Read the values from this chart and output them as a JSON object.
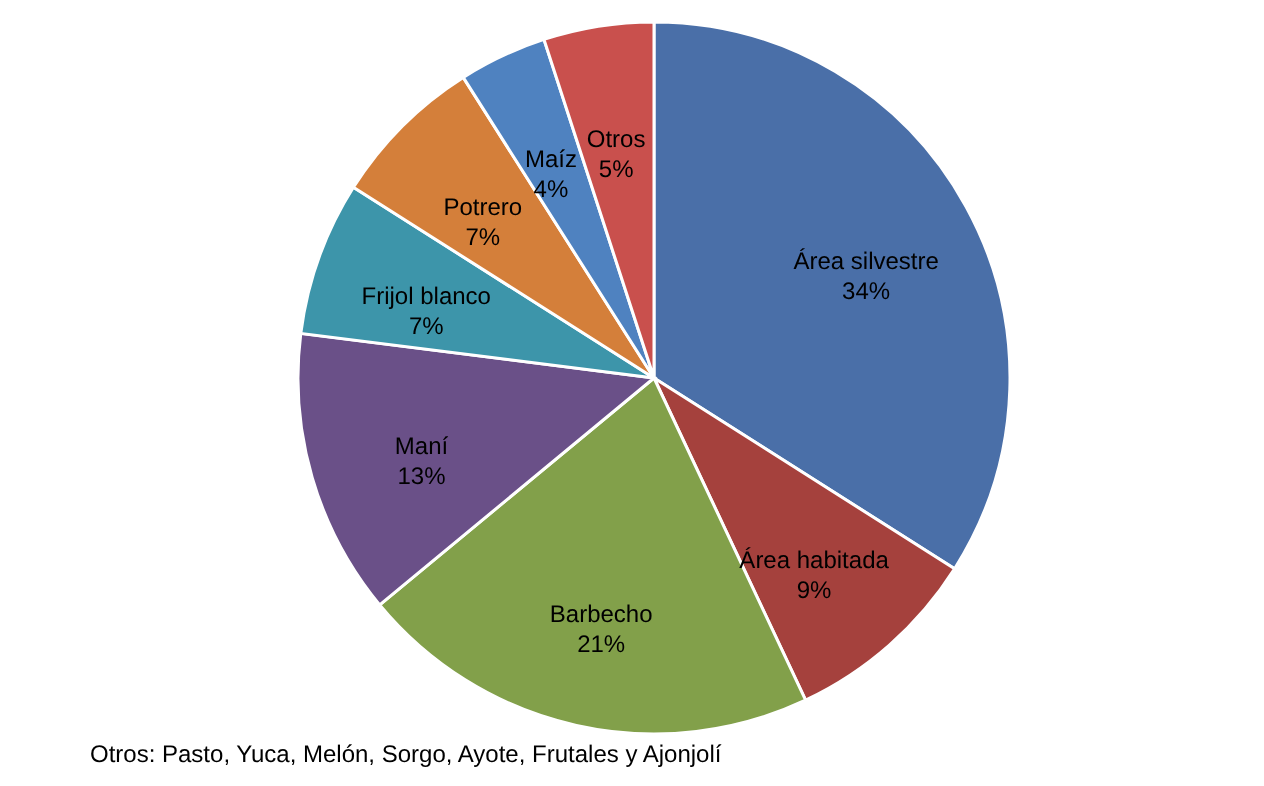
{
  "chart_data": {
    "type": "pie",
    "categories": [
      "Área silvestre",
      "Área habitada",
      "Barbecho",
      "Maní",
      "Frijol blanco",
      "Potrero",
      "Maíz",
      "Otros"
    ],
    "values": [
      34,
      9,
      21,
      13,
      7,
      7,
      4,
      5
    ],
    "value_labels": [
      "34%",
      "9%",
      "21%",
      "13%",
      "7%",
      "7%",
      "4%",
      "5%"
    ],
    "colors": [
      "#4a6fa8",
      "#a5413d",
      "#82a04a",
      "#6a5088",
      "#3d95aa",
      "#d47f3a",
      "#4f82c0",
      "#c9504d"
    ],
    "annotations": [
      "Otros: Pasto, Yuca, Melón, Sorgo, Ayote, Frutales y Ajonjolí"
    ]
  }
}
